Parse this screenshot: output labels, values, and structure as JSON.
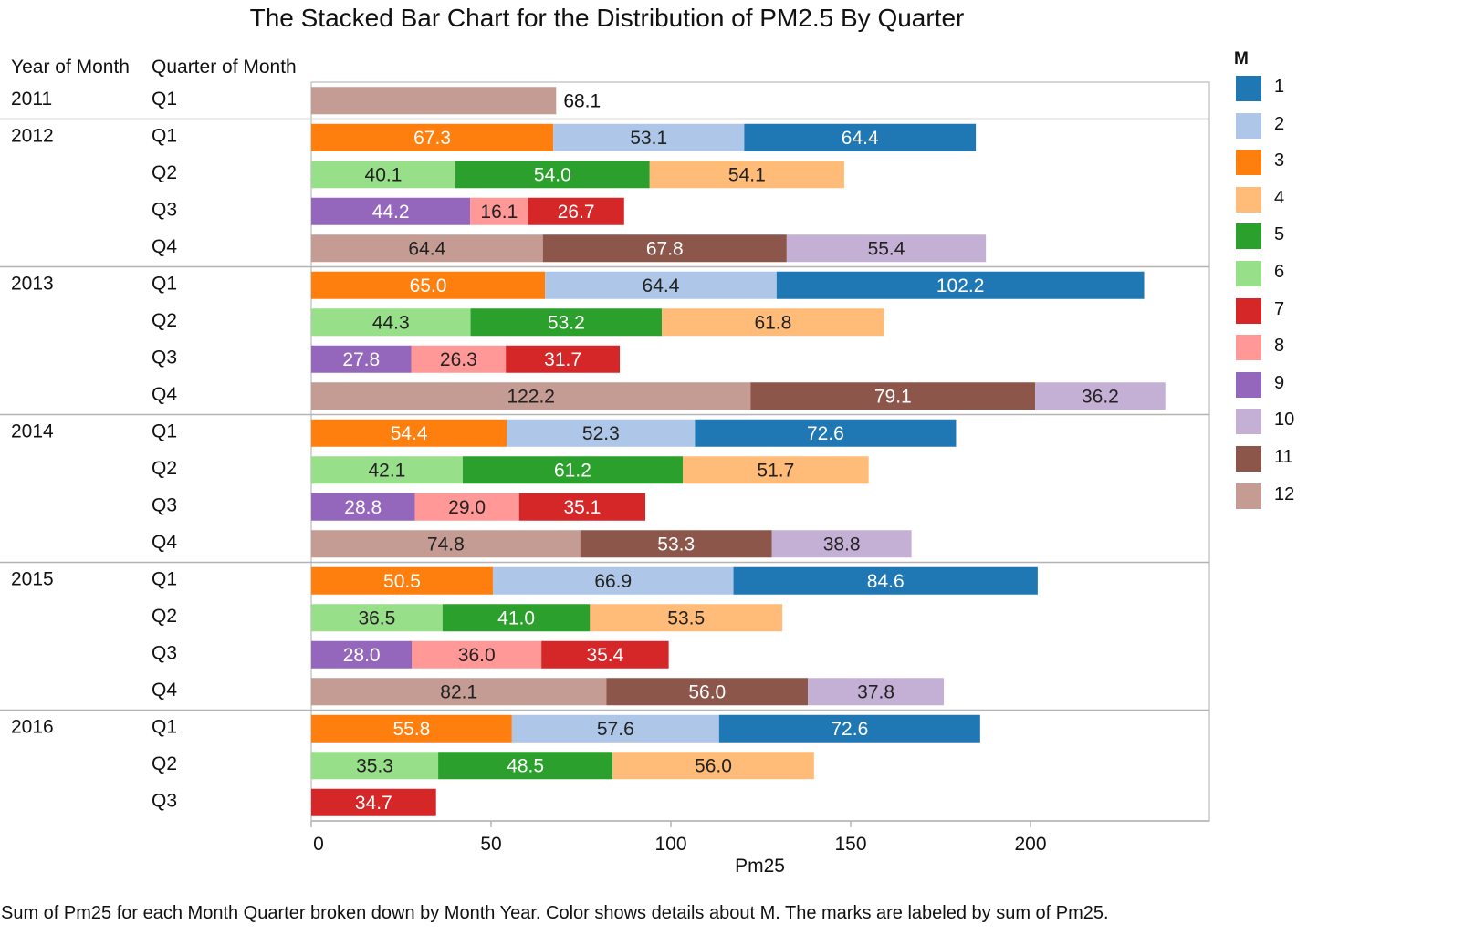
{
  "chart_data": {
    "type": "bar",
    "orientation": "horizontal",
    "stacked": true,
    "title": "The Stacked Bar Chart for the Distribution of PM2.5 By Quarter",
    "row_headers": [
      "Year of Month",
      "Quarter of Month"
    ],
    "xlabel": "Pm25",
    "xlim": [
      0,
      250
    ],
    "xticks": [
      0,
      50,
      100,
      150,
      200
    ],
    "legend": {
      "title": "M",
      "position": "right"
    },
    "colors": {
      "1": "#1f77b4",
      "2": "#aec7e8",
      "3": "#ff7f0e",
      "4": "#ffbb78",
      "5": "#2ca02c",
      "6": "#98df8a",
      "7": "#d62728",
      "8": "#ff9896",
      "9": "#9467bd",
      "10": "#c5b0d5",
      "11": "#8c564b",
      "12": "#c49c94"
    },
    "rows": [
      {
        "year": "2011",
        "quarter": "Q1",
        "segments": [
          {
            "m": "12",
            "value": 68.1
          }
        ]
      },
      {
        "year": "2012",
        "quarter": "Q1",
        "segments": [
          {
            "m": "3",
            "value": 67.3
          },
          {
            "m": "2",
            "value": 53.1
          },
          {
            "m": "1",
            "value": 64.4
          }
        ]
      },
      {
        "year": "2012",
        "quarter": "Q2",
        "segments": [
          {
            "m": "6",
            "value": 40.1
          },
          {
            "m": "5",
            "value": 54.0
          },
          {
            "m": "4",
            "value": 54.1
          }
        ]
      },
      {
        "year": "2012",
        "quarter": "Q3",
        "segments": [
          {
            "m": "9",
            "value": 44.2
          },
          {
            "m": "8",
            "value": 16.1
          },
          {
            "m": "7",
            "value": 26.7
          }
        ]
      },
      {
        "year": "2012",
        "quarter": "Q4",
        "segments": [
          {
            "m": "12",
            "value": 64.4
          },
          {
            "m": "11",
            "value": 67.8
          },
          {
            "m": "10",
            "value": 55.4
          }
        ]
      },
      {
        "year": "2013",
        "quarter": "Q1",
        "segments": [
          {
            "m": "3",
            "value": 65.0
          },
          {
            "m": "2",
            "value": 64.4
          },
          {
            "m": "1",
            "value": 102.2
          }
        ]
      },
      {
        "year": "2013",
        "quarter": "Q2",
        "segments": [
          {
            "m": "6",
            "value": 44.3
          },
          {
            "m": "5",
            "value": 53.2
          },
          {
            "m": "4",
            "value": 61.8
          }
        ]
      },
      {
        "year": "2013",
        "quarter": "Q3",
        "segments": [
          {
            "m": "9",
            "value": 27.8
          },
          {
            "m": "8",
            "value": 26.3
          },
          {
            "m": "7",
            "value": 31.7
          }
        ]
      },
      {
        "year": "2013",
        "quarter": "Q4",
        "segments": [
          {
            "m": "12",
            "value": 122.2
          },
          {
            "m": "11",
            "value": 79.1
          },
          {
            "m": "10",
            "value": 36.2
          }
        ]
      },
      {
        "year": "2014",
        "quarter": "Q1",
        "segments": [
          {
            "m": "3",
            "value": 54.4
          },
          {
            "m": "2",
            "value": 52.3
          },
          {
            "m": "1",
            "value": 72.6
          }
        ]
      },
      {
        "year": "2014",
        "quarter": "Q2",
        "segments": [
          {
            "m": "6",
            "value": 42.1
          },
          {
            "m": "5",
            "value": 61.2
          },
          {
            "m": "4",
            "value": 51.7
          }
        ]
      },
      {
        "year": "2014",
        "quarter": "Q3",
        "segments": [
          {
            "m": "9",
            "value": 28.8
          },
          {
            "m": "8",
            "value": 29.0
          },
          {
            "m": "7",
            "value": 35.1
          }
        ]
      },
      {
        "year": "2014",
        "quarter": "Q4",
        "segments": [
          {
            "m": "12",
            "value": 74.8
          },
          {
            "m": "11",
            "value": 53.3
          },
          {
            "m": "10",
            "value": 38.8
          }
        ]
      },
      {
        "year": "2015",
        "quarter": "Q1",
        "segments": [
          {
            "m": "3",
            "value": 50.5
          },
          {
            "m": "2",
            "value": 66.9
          },
          {
            "m": "1",
            "value": 84.6
          }
        ]
      },
      {
        "year": "2015",
        "quarter": "Q2",
        "segments": [
          {
            "m": "6",
            "value": 36.5
          },
          {
            "m": "5",
            "value": 41.0
          },
          {
            "m": "4",
            "value": 53.5
          }
        ]
      },
      {
        "year": "2015",
        "quarter": "Q3",
        "segments": [
          {
            "m": "9",
            "value": 28.0
          },
          {
            "m": "8",
            "value": 36.0
          },
          {
            "m": "7",
            "value": 35.4
          }
        ]
      },
      {
        "year": "2015",
        "quarter": "Q4",
        "segments": [
          {
            "m": "12",
            "value": 82.1
          },
          {
            "m": "11",
            "value": 56.0
          },
          {
            "m": "10",
            "value": 37.8
          }
        ]
      },
      {
        "year": "2016",
        "quarter": "Q1",
        "segments": [
          {
            "m": "3",
            "value": 55.8
          },
          {
            "m": "2",
            "value": 57.6
          },
          {
            "m": "1",
            "value": 72.6
          }
        ]
      },
      {
        "year": "2016",
        "quarter": "Q2",
        "segments": [
          {
            "m": "6",
            "value": 35.3
          },
          {
            "m": "5",
            "value": 48.5
          },
          {
            "m": "4",
            "value": 56.0
          }
        ]
      },
      {
        "year": "2016",
        "quarter": "Q3",
        "segments": [
          {
            "m": "7",
            "value": 34.7
          }
        ]
      }
    ],
    "caption": "Sum of Pm25 for each Month Quarter broken down by Month Year.  Color shows details about M.  The marks are labeled by sum of Pm25."
  },
  "legend_items": [
    "1",
    "2",
    "3",
    "4",
    "5",
    "6",
    "7",
    "8",
    "9",
    "10",
    "11",
    "12"
  ]
}
